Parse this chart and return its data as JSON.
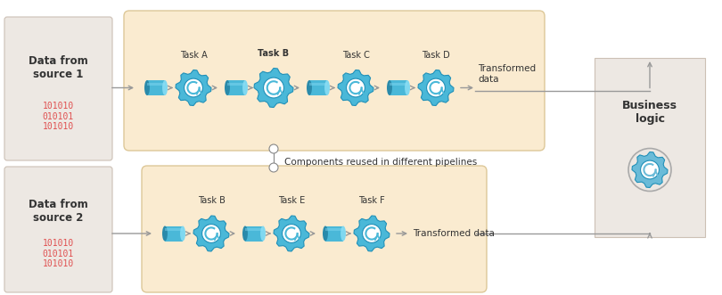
{
  "bg_color": "#ffffff",
  "pipeline_bg": "#faebd0",
  "pipeline_border": "#ddc898",
  "source_box_bg": "#ede8e3",
  "source_box_border": "#ccc0b5",
  "business_box_bg": "#ede8e3",
  "business_box_border": "#ccc0b5",
  "pipe_body_color": "#4ab8d8",
  "pipe_left_color": "#2a8aaa",
  "pipe_right_color": "#80d8f0",
  "gear_color": "#4ab8d8",
  "gear_edge_color": "#2090b8",
  "arrow_color": "#999999",
  "text_color": "#333333",
  "red_text_color": "#e05050",
  "source1_label": "Data from\nsource 1",
  "source1_data": "101010\n010101\n101010",
  "source2_label": "Data from\nsource 2",
  "source2_data": "101010\n010101\n101010",
  "business_label": "Business\nlogic",
  "pipeline1_tasks": [
    "Task A",
    "Task B",
    "Task C",
    "Task D"
  ],
  "pipeline1_bold": [
    false,
    true,
    false,
    false
  ],
  "pipeline2_tasks": [
    "Task B",
    "Task E",
    "Task F"
  ],
  "pipeline2_bold": [
    false,
    false,
    false
  ],
  "reuse_label": "Components reused in different pipelines",
  "transformed1_label": "Transformed\ndata",
  "transformed2_label": "Transformed data"
}
